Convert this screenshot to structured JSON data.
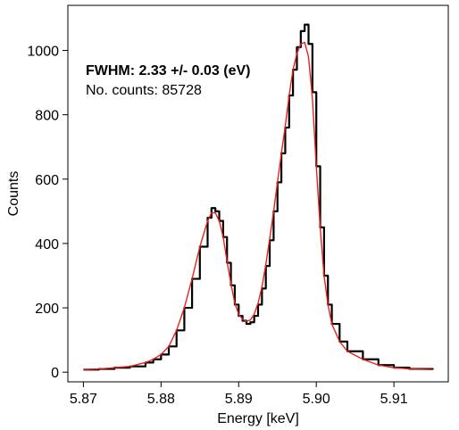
{
  "chart_data": {
    "type": "line",
    "title": "",
    "xlabel": "Energy [keV]",
    "ylabel": "Counts",
    "xlim": [
      5.868,
      5.917
    ],
    "ylim": [
      -30,
      1140
    ],
    "xticks": [
      5.87,
      5.88,
      5.89,
      5.9,
      5.91
    ],
    "xtick_labels": [
      "5.87",
      "5.88",
      "5.89",
      "5.90",
      "5.91"
    ],
    "yticks": [
      0,
      200,
      400,
      600,
      800,
      1000
    ],
    "ytick_labels": [
      "0",
      "200",
      "400",
      "600",
      "800",
      "1000"
    ],
    "grid": false,
    "legend": "none",
    "annotations": [
      {
        "text": "FWHM:  2.33 +/- 0.03 (eV)",
        "bold": true
      },
      {
        "text": "No. counts: 85728",
        "bold": false
      }
    ],
    "series": [
      {
        "kind": "histogram",
        "color": "#000000",
        "x": [
          5.87,
          5.872,
          5.874,
          5.876,
          5.878,
          5.879,
          5.88,
          5.881,
          5.882,
          5.883,
          5.884,
          5.885,
          5.886,
          5.8865,
          5.887,
          5.8875,
          5.888,
          5.8885,
          5.889,
          5.8895,
          5.89,
          5.8905,
          5.891,
          5.8915,
          5.892,
          5.8925,
          5.893,
          5.8935,
          5.894,
          5.8945,
          5.895,
          5.8955,
          5.896,
          5.8965,
          5.897,
          5.8975,
          5.898,
          5.8985,
          5.899,
          5.8995,
          5.9,
          5.9005,
          5.901,
          5.9015,
          5.902,
          5.903,
          5.904,
          5.906,
          5.908,
          5.91,
          5.912,
          5.915
        ],
        "y": [
          8,
          10,
          14,
          18,
          30,
          40,
          55,
          80,
          130,
          200,
          290,
          390,
          480,
          510,
          500,
          470,
          420,
          340,
          270,
          210,
          175,
          160,
          150,
          155,
          175,
          210,
          260,
          330,
          410,
          500,
          590,
          680,
          760,
          860,
          940,
          1010,
          1060,
          1080,
          1020,
          870,
          640,
          450,
          300,
          210,
          150,
          95,
          65,
          40,
          22,
          14,
          10,
          8
        ]
      },
      {
        "kind": "fit",
        "color": "#e8221c",
        "x": [
          5.87,
          5.872,
          5.874,
          5.876,
          5.878,
          5.879,
          5.88,
          5.881,
          5.882,
          5.883,
          5.884,
          5.885,
          5.886,
          5.8865,
          5.887,
          5.8875,
          5.888,
          5.8885,
          5.889,
          5.8895,
          5.89,
          5.8905,
          5.891,
          5.8915,
          5.892,
          5.8925,
          5.893,
          5.8935,
          5.894,
          5.8945,
          5.895,
          5.8955,
          5.896,
          5.8965,
          5.897,
          5.8975,
          5.898,
          5.8985,
          5.899,
          5.8995,
          5.9,
          5.9005,
          5.901,
          5.9015,
          5.902,
          5.903,
          5.904,
          5.906,
          5.908,
          5.91,
          5.912,
          5.915
        ],
        "y": [
          8,
          10,
          14,
          18,
          30,
          40,
          55,
          80,
          130,
          200,
          290,
          390,
          470,
          495,
          495,
          470,
          420,
          345,
          275,
          215,
          180,
          165,
          158,
          162,
          180,
          215,
          265,
          335,
          415,
          500,
          590,
          680,
          765,
          860,
          940,
          990,
          1020,
          1025,
          980,
          850,
          640,
          450,
          300,
          210,
          150,
          95,
          65,
          40,
          22,
          14,
          10,
          8
        ]
      }
    ]
  }
}
